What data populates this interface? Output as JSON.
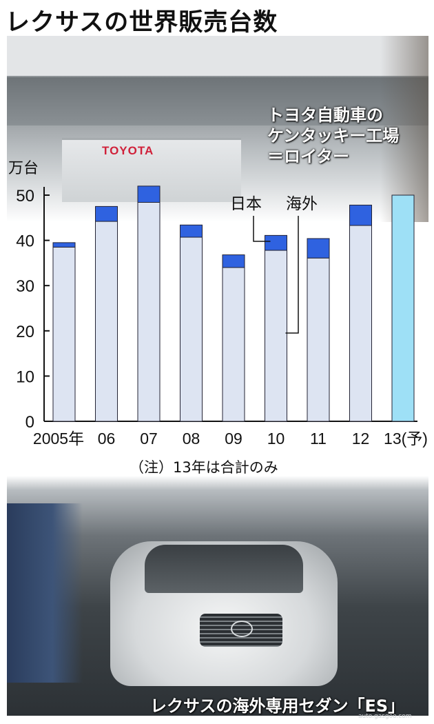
{
  "title": "レクサスの世界販売台数",
  "photo_top": {
    "sign_text": "TOYOTA",
    "caption_lines": [
      "トヨタ自動車の",
      "ケンタッキー工場",
      "＝ロイター"
    ]
  },
  "photo_bottom": {
    "caption": "レクサスの海外専用セダン「ES」",
    "watermark": "auto.gasgoo.com"
  },
  "note": "（注）13年は合計のみ",
  "colors": {
    "japan": "#dde4f2",
    "overseas": "#2f62e0",
    "total_forecast": "#9ee0f6",
    "axis": "#111111"
  },
  "chart_data": {
    "type": "bar",
    "stacked": true,
    "title": "レクサスの世界販売台数",
    "ylabel": "万台",
    "xlabel": "",
    "ylim": [
      0,
      50
    ],
    "yticks": [
      0,
      10,
      20,
      30,
      40,
      50
    ],
    "categories": [
      "2005年",
      "06",
      "07",
      "08",
      "09",
      "10",
      "11",
      "12",
      "13(予)"
    ],
    "series": [
      {
        "name": "日本",
        "values": [
          38.5,
          44.2,
          48.4,
          40.7,
          34.0,
          37.8,
          36.1,
          43.3,
          null
        ]
      },
      {
        "name": "海外",
        "values": [
          1.0,
          3.3,
          3.6,
          2.7,
          2.8,
          3.3,
          4.3,
          4.5,
          null
        ]
      }
    ],
    "total_only": [
      null,
      null,
      null,
      null,
      null,
      null,
      null,
      null,
      50.0
    ],
    "grid": false,
    "legend": "inline-callouts"
  }
}
